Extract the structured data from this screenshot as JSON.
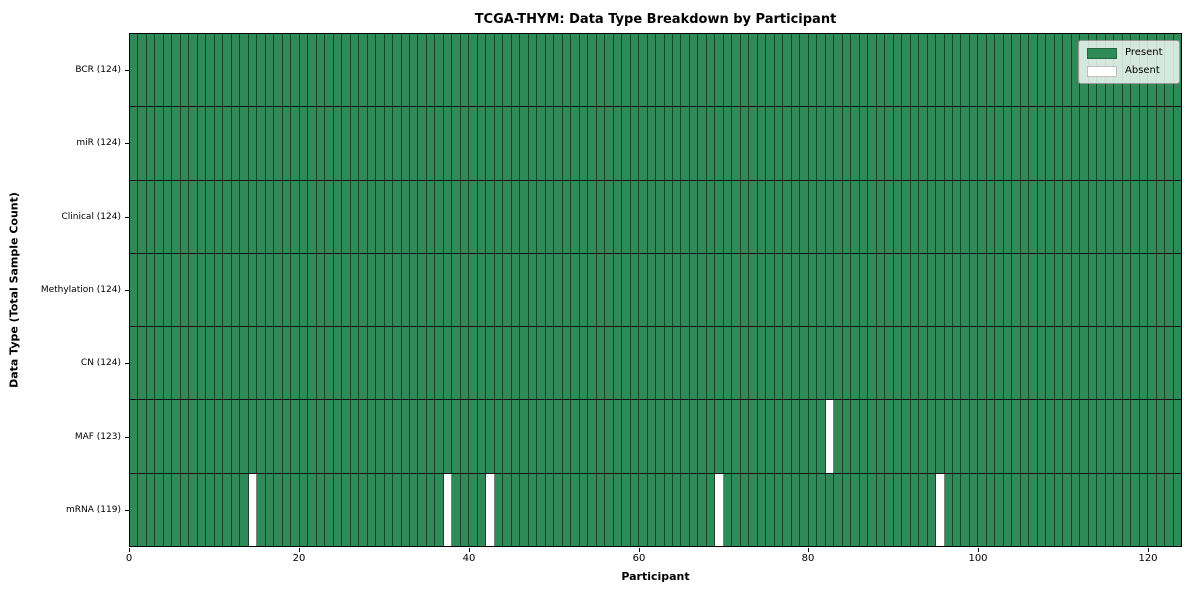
{
  "chart_data": {
    "type": "heatmap",
    "title": "TCGA-THYM: Data Type Breakdown by Participant",
    "xlabel": "Participant",
    "ylabel": "Data Type (Total Sample Count)",
    "n_participants": 124,
    "x_ticks": [
      0,
      20,
      40,
      60,
      80,
      100,
      120
    ],
    "x_range": [
      0,
      124
    ],
    "grid": false,
    "rows": [
      {
        "name": "BCR",
        "label": "BCR (124)",
        "total": 124,
        "absent_participants": []
      },
      {
        "name": "miR",
        "label": "miR (124)",
        "total": 124,
        "absent_participants": []
      },
      {
        "name": "Clinical",
        "label": "Clinical (124)",
        "total": 124,
        "absent_participants": []
      },
      {
        "name": "Methylation",
        "label": "Methylation (124)",
        "total": 124,
        "absent_participants": []
      },
      {
        "name": "CN",
        "label": "CN (124)",
        "total": 124,
        "absent_participants": []
      },
      {
        "name": "MAF",
        "label": "MAF (123)",
        "total": 123,
        "absent_participants": [
          82
        ]
      },
      {
        "name": "mRNA",
        "label": "mRNA (119)",
        "total": 119,
        "absent_participants": [
          14,
          37,
          42,
          69,
          95
        ]
      }
    ],
    "legend": {
      "position": "upper right",
      "entries": [
        {
          "label": "Present",
          "color": "#2e8b57"
        },
        {
          "label": "Absent",
          "color": "#ffffff"
        }
      ]
    },
    "colors": {
      "present": "#2e8b57",
      "absent": "#ffffff",
      "cell_edge": "rgba(0,0,0,0.50)",
      "row_divider": "#141414",
      "spine": "#000000"
    }
  }
}
